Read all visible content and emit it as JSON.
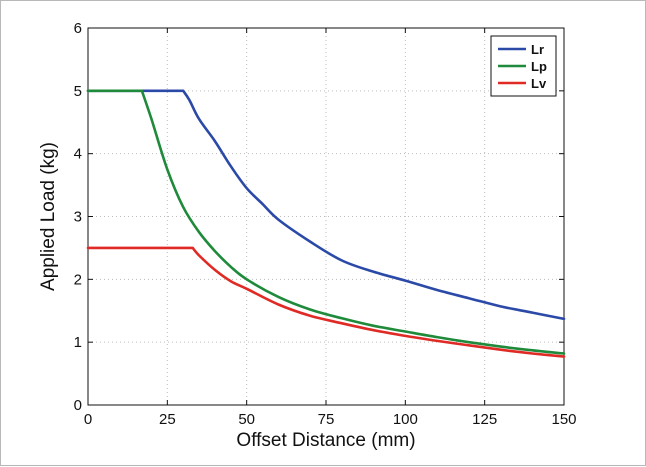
{
  "chart_data": {
    "type": "line",
    "title": "",
    "xlabel": "Offset Distance (mm)",
    "ylabel": "Applied Load (kg)",
    "xlim": [
      0,
      150
    ],
    "ylim": [
      0,
      6
    ],
    "xticks": [
      0,
      25,
      50,
      75,
      100,
      125,
      150
    ],
    "yticks": [
      0,
      1,
      2,
      3,
      4,
      5,
      6
    ],
    "grid": true,
    "legend_position": "top-right",
    "series": [
      {
        "name": "Lr",
        "color": "#2b4aa8",
        "x": [
          0,
          30,
          32,
          35,
          40,
          45,
          50,
          55,
          60,
          70,
          80,
          90,
          100,
          110,
          120,
          130,
          140,
          150
        ],
        "y": [
          5.0,
          5.0,
          4.85,
          4.55,
          4.2,
          3.8,
          3.45,
          3.2,
          2.95,
          2.6,
          2.3,
          2.12,
          1.98,
          1.83,
          1.7,
          1.57,
          1.47,
          1.37
        ]
      },
      {
        "name": "Lp",
        "color": "#1e8a3a",
        "x": [
          0,
          17,
          20,
          25,
          30,
          35,
          40,
          45,
          50,
          60,
          70,
          80,
          90,
          100,
          110,
          120,
          130,
          140,
          150
        ],
        "y": [
          5.0,
          5.0,
          4.55,
          3.75,
          3.15,
          2.75,
          2.45,
          2.2,
          2.0,
          1.72,
          1.52,
          1.38,
          1.26,
          1.17,
          1.08,
          1.0,
          0.93,
          0.87,
          0.82
        ]
      },
      {
        "name": "Lv",
        "color": "#e02a25",
        "x": [
          0,
          33,
          35,
          40,
          45,
          50,
          60,
          70,
          80,
          90,
          100,
          110,
          120,
          130,
          140,
          150
        ],
        "y": [
          2.5,
          2.5,
          2.38,
          2.15,
          1.97,
          1.85,
          1.6,
          1.42,
          1.3,
          1.19,
          1.1,
          1.02,
          0.95,
          0.88,
          0.82,
          0.77
        ]
      }
    ]
  }
}
